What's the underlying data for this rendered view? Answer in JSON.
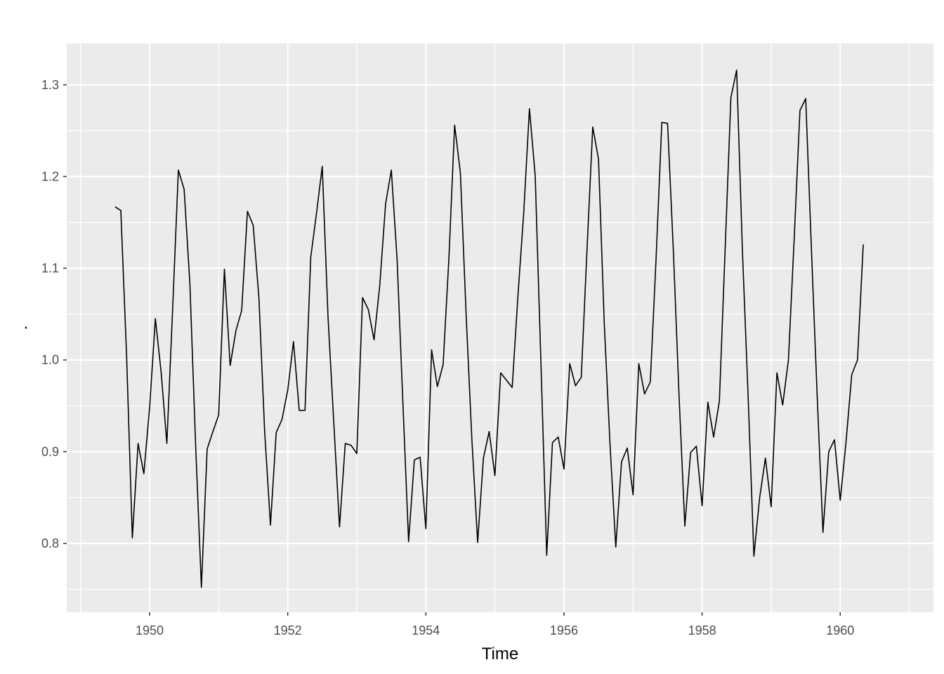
{
  "chart_data": {
    "type": "line",
    "title": "",
    "xlabel": "Time",
    "ylabel": ".",
    "xlim": [
      1948.8,
      1961.35
    ],
    "ylim": [
      0.725,
      1.345
    ],
    "x_ticks": [
      1950,
      1952,
      1954,
      1956,
      1958,
      1960
    ],
    "x_tick_labels": [
      "1950",
      "1952",
      "1954",
      "1956",
      "1958",
      "1960"
    ],
    "y_ticks": [
      0.8,
      0.9,
      1.0,
      1.1,
      1.2,
      1.3
    ],
    "y_tick_labels": [
      "0.8",
      "0.9",
      "1.0",
      "1.1",
      "1.2",
      "1.3"
    ],
    "grid": true,
    "legend": "none",
    "colors": {
      "panel": "#ebebeb",
      "grid": "#ffffff",
      "line": "#000000",
      "tick_text": "#4d4d4d"
    },
    "series": [
      {
        "x_start": 1949.5,
        "x_step": 0.0833333333,
        "values": [
          1.167,
          1.163,
          1.005,
          0.806,
          0.909,
          0.876,
          0.948,
          1.045,
          0.987,
          0.909,
          1.055,
          1.207,
          1.186,
          1.083,
          0.907,
          0.752,
          0.903,
          0.922,
          0.94,
          1.099,
          0.994,
          1.032,
          1.054,
          1.162,
          1.147,
          1.067,
          0.921,
          0.82,
          0.921,
          0.935,
          0.967,
          1.02,
          0.945,
          0.945,
          1.112,
          1.16,
          1.211,
          1.047,
          0.932,
          0.818,
          0.909,
          0.907,
          0.898,
          1.068,
          1.055,
          1.022,
          1.082,
          1.17,
          1.207,
          1.11,
          0.955,
          0.802,
          0.891,
          0.894,
          0.816,
          1.011,
          0.971,
          0.995,
          1.11,
          1.256,
          1.204,
          1.049,
          0.913,
          0.801,
          0.893,
          0.922,
          0.874,
          0.986,
          0.978,
          0.97,
          1.07,
          1.16,
          1.274,
          1.201,
          0.996,
          0.787,
          0.91,
          0.916,
          0.881,
          0.996,
          0.972,
          0.981,
          1.12,
          1.254,
          1.219,
          1.04,
          0.908,
          0.796,
          0.889,
          0.904,
          0.853,
          0.996,
          0.963,
          0.976,
          1.11,
          1.259,
          1.258,
          1.12,
          0.96,
          0.819,
          0.899,
          0.906,
          0.841,
          0.954,
          0.916,
          0.955,
          1.12,
          1.286,
          1.316,
          1.12,
          0.96,
          0.786,
          0.85,
          0.893,
          0.84,
          0.986,
          0.951,
          1.0,
          1.132,
          1.272,
          1.285,
          1.12,
          0.96,
          0.812,
          0.9,
          0.913,
          0.847,
          0.91,
          0.984,
          1.0,
          1.126
        ]
      }
    ]
  }
}
